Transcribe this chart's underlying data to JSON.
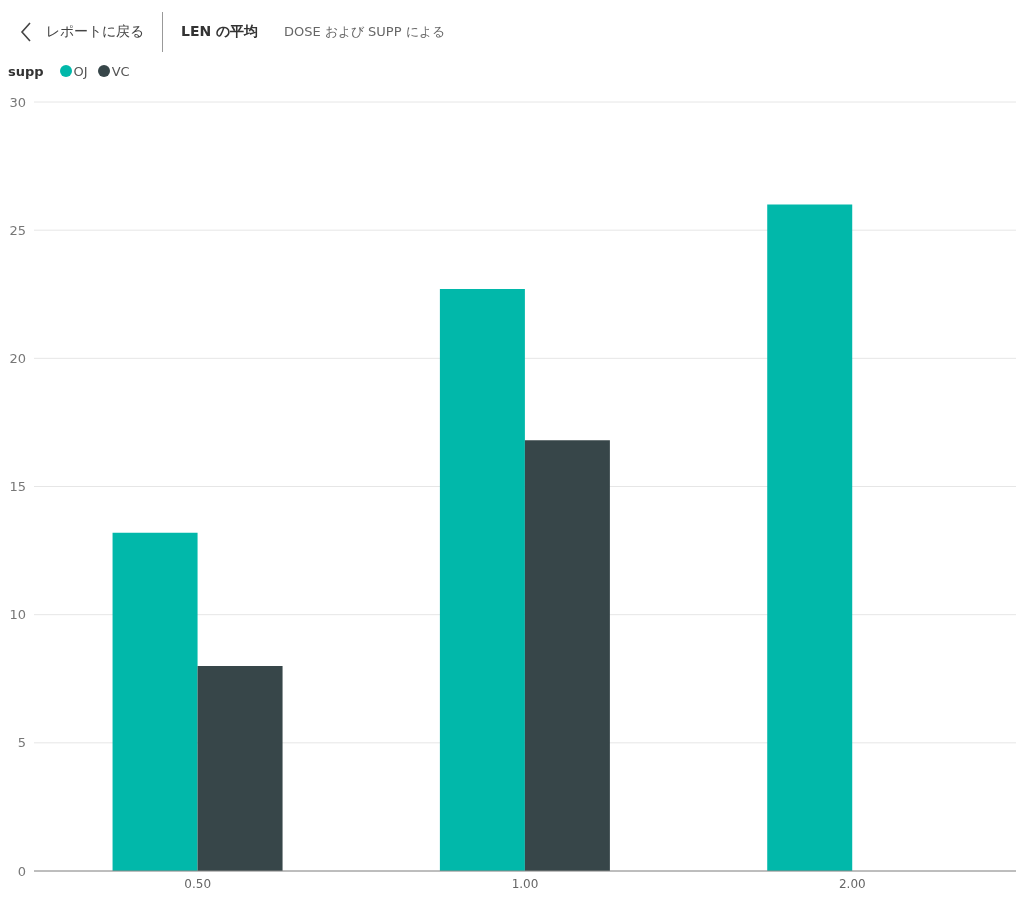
{
  "chart_data": {
    "type": "bar",
    "title": "LEN の平均",
    "subtitle": "DOSE および SUPP による",
    "annotations": [
      "レポートに戻る"
    ],
    "legend_title": "supp",
    "legend": "top left",
    "grid": "y",
    "categories": [
      "0.50",
      "1.00",
      "2.00"
    ],
    "series": [
      {
        "name": "OJ",
        "color": "#01b8aa",
        "values": [
          13.2,
          22.7,
          26.0
        ]
      },
      {
        "name": "VC",
        "color": "#374649",
        "values": [
          8.0,
          16.8,
          null
        ]
      }
    ],
    "ylim": [
      0,
      30
    ],
    "yticks": [
      0,
      5,
      10,
      15,
      20,
      25,
      30
    ]
  }
}
